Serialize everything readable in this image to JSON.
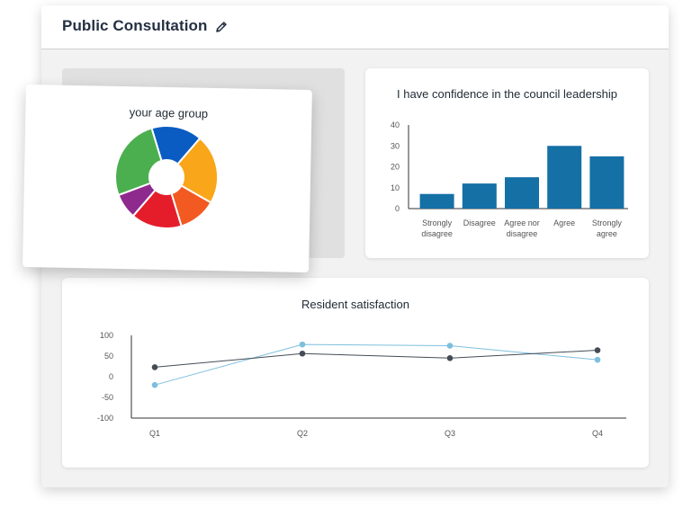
{
  "header": {
    "title": "Public Consultation",
    "edit_icon": "pencil-icon"
  },
  "colors": {
    "bar": "#1570a6",
    "line_dark": "#444c56",
    "line_light": "#7dbfdd",
    "pie": [
      "#0a5cc2",
      "#f9a61a",
      "#f25a22",
      "#e51d2a",
      "#8e2a8e",
      "#4caf4f"
    ]
  },
  "chart_data": [
    {
      "type": "pie",
      "title": "your age group",
      "donut": true,
      "values": [
        16,
        22,
        12,
        16,
        8,
        26
      ],
      "colors": [
        "#0a5cc2",
        "#f9a61a",
        "#f25a22",
        "#e51d2a",
        "#8e2a8e",
        "#4caf4f"
      ]
    },
    {
      "type": "bar",
      "title": "I have confidence in the council leadership",
      "categories": [
        [
          "Strongly",
          "disagree"
        ],
        [
          "Disagree"
        ],
        [
          "Agree nor",
          "disagree"
        ],
        [
          "Agree"
        ],
        [
          "Strongly",
          "agree"
        ]
      ],
      "values": [
        7,
        12,
        15,
        30,
        25
      ],
      "ylim": [
        0,
        40
      ],
      "yticks": [
        "0",
        "10",
        "20",
        "30",
        "40"
      ],
      "grid": false
    },
    {
      "type": "line",
      "title": "Resident satisfaction",
      "categories": [
        "Q1",
        "Q2",
        "Q3",
        "Q4"
      ],
      "series": [
        {
          "values": [
            23,
            56,
            45,
            64
          ],
          "color": "#444c56"
        },
        {
          "values": [
            -20,
            78,
            75,
            41
          ],
          "color": "#7dbfdd"
        }
      ],
      "ylim": [
        -100,
        100
      ],
      "yticks": [
        "100",
        "50",
        "0",
        "-50",
        "-100"
      ],
      "grid": false
    }
  ]
}
